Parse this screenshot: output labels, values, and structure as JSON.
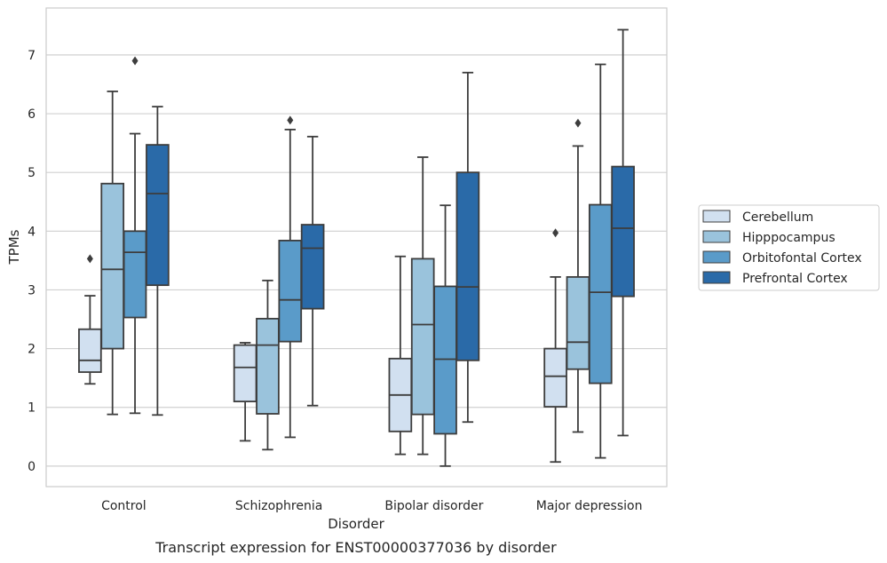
{
  "chart_data": {
    "type": "box",
    "xlabel": "Disorder",
    "ylabel": "TPMs",
    "caption": "Transcript expression for ENST00000377036 by disorder",
    "ylim": [
      -0.35,
      7.8
    ],
    "yticks": [
      0,
      1,
      2,
      3,
      4,
      5,
      6,
      7
    ],
    "grid": "horizontal",
    "legend_position": "right",
    "categories": [
      "Control",
      "Schizophrenia",
      "Bipolar disorder",
      "Major depression"
    ],
    "series": [
      {
        "name": "Cerebellum",
        "color": "#d1e0f0",
        "boxes": [
          {
            "whislo": 1.4,
            "q1": 1.6,
            "med": 1.8,
            "q3": 2.33,
            "whishi": 2.9,
            "fliers": [
              3.53
            ]
          },
          {
            "whislo": 0.43,
            "q1": 1.1,
            "med": 1.68,
            "q3": 2.06,
            "whishi": 2.1,
            "fliers": []
          },
          {
            "whislo": 0.2,
            "q1": 0.59,
            "med": 1.21,
            "q3": 1.83,
            "whishi": 3.57,
            "fliers": []
          },
          {
            "whislo": 0.07,
            "q1": 1.01,
            "med": 1.53,
            "q3": 2.0,
            "whishi": 3.22,
            "fliers": [
              3.97
            ]
          }
        ]
      },
      {
        "name": "Hipppocampus",
        "color": "#9ac3dc",
        "boxes": [
          {
            "whislo": 0.88,
            "q1": 2.0,
            "med": 3.35,
            "q3": 4.81,
            "whishi": 6.38,
            "fliers": []
          },
          {
            "whislo": 0.28,
            "q1": 0.89,
            "med": 2.06,
            "q3": 2.51,
            "whishi": 3.16,
            "fliers": []
          },
          {
            "whislo": 0.2,
            "q1": 0.88,
            "med": 2.41,
            "q3": 3.53,
            "whishi": 5.26,
            "fliers": []
          },
          {
            "whislo": 0.58,
            "q1": 1.65,
            "med": 2.11,
            "q3": 3.22,
            "whishi": 5.45,
            "fliers": [
              5.84
            ]
          }
        ]
      },
      {
        "name": "Orbitofontal Cortex",
        "color": "#5a9bc9",
        "boxes": [
          {
            "whislo": 0.9,
            "q1": 2.53,
            "med": 3.64,
            "q3": 4.0,
            "whishi": 5.66,
            "fliers": [
              6.9
            ]
          },
          {
            "whislo": 0.49,
            "q1": 2.12,
            "med": 2.83,
            "q3": 3.84,
            "whishi": 5.73,
            "fliers": [
              5.89
            ]
          },
          {
            "whislo": 0.0,
            "q1": 0.55,
            "med": 1.82,
            "q3": 3.06,
            "whishi": 4.44,
            "fliers": []
          },
          {
            "whislo": 0.14,
            "q1": 1.41,
            "med": 2.96,
            "q3": 4.45,
            "whishi": 6.84,
            "fliers": []
          }
        ]
      },
      {
        "name": "Prefrontal Cortex",
        "color": "#2a6aa8",
        "boxes": [
          {
            "whislo": 0.87,
            "q1": 3.08,
            "med": 4.64,
            "q3": 5.47,
            "whishi": 6.12,
            "fliers": []
          },
          {
            "whislo": 1.03,
            "q1": 2.68,
            "med": 3.71,
            "q3": 4.11,
            "whishi": 5.61,
            "fliers": []
          },
          {
            "whislo": 0.75,
            "q1": 1.8,
            "med": 3.05,
            "q3": 5.0,
            "whishi": 6.7,
            "fliers": []
          },
          {
            "whislo": 0.52,
            "q1": 2.89,
            "med": 4.05,
            "q3": 5.1,
            "whishi": 7.43,
            "fliers": []
          }
        ]
      }
    ]
  }
}
